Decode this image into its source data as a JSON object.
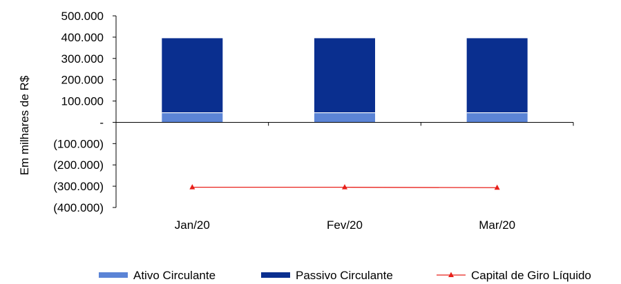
{
  "chart_data": {
    "type": "bar",
    "title": "",
    "xlabel": "",
    "ylabel": "Em milhares de R$",
    "categories": [
      "Jan/20",
      "Fev/20",
      "Mar/20"
    ],
    "ylim": [
      -400000,
      500000
    ],
    "yticks": [
      {
        "value": 500000,
        "label": "500.000"
      },
      {
        "value": 400000,
        "label": "400.000"
      },
      {
        "value": 300000,
        "label": "300.000"
      },
      {
        "value": 200000,
        "label": "200.000"
      },
      {
        "value": 100000,
        "label": "100.000"
      },
      {
        "value": 0,
        "label": "-"
      },
      {
        "value": -100000,
        "label": "(100.000)"
      },
      {
        "value": -200000,
        "label": "(200.000)"
      },
      {
        "value": -300000,
        "label": "(300.000)"
      },
      {
        "value": -400000,
        "label": "(400.000)"
      }
    ],
    "series": [
      {
        "name": "Ativo Circulante",
        "kind": "stacked-bar",
        "color": "#5b84d6",
        "values": [
          45000,
          45000,
          45000
        ]
      },
      {
        "name": "Passivo Circulante",
        "kind": "stacked-bar",
        "color": "#0a2f8f",
        "values": [
          350000,
          350000,
          350000
        ]
      },
      {
        "name": "Capital de Giro Líquido",
        "kind": "line",
        "color": "#e8201a",
        "values": [
          -305000,
          -305000,
          -307000
        ]
      }
    ],
    "legend_position": "bottom",
    "grid": false
  }
}
